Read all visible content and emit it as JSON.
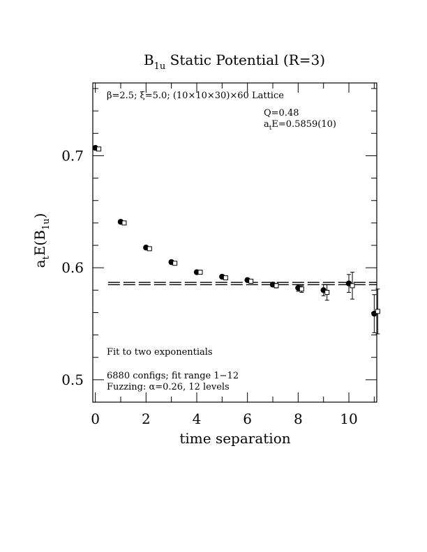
{
  "chart_data": {
    "type": "scatter",
    "title": "B₁ᵤ Static Potential (R=3)",
    "title_main": "B",
    "title_sub": "1u",
    "title_rest": " Static Potential (R=3)",
    "xlabel": "time separation",
    "ylabel_main": "a",
    "ylabel_sub1": "t",
    "ylabel_mid": "E(B",
    "ylabel_sub2": "1u",
    "ylabel_end": ")",
    "xlim": [
      -0.1,
      11.1
    ],
    "ylim": [
      0.48,
      0.765
    ],
    "x_ticks": [
      0,
      2,
      4,
      6,
      8,
      10
    ],
    "x_tick_labels": [
      "0",
      "2",
      "4",
      "6",
      "8",
      "10"
    ],
    "y_ticks": [
      0.5,
      0.6,
      0.7
    ],
    "y_tick_labels": [
      "0.5",
      "0.6",
      "0.7"
    ],
    "annotations": {
      "lattice": "β=2.5; ξ=5.0; (10×10×30)×60 Lattice",
      "q": "Q=0.48",
      "energy_main": "a",
      "energy_sub": "t",
      "energy_rest": "E=0.5859(10)",
      "fit_label": "Fit to two exponentials",
      "configs": "6880 configs; fit range 1−12",
      "fuzzing": "Fuzzing: α=0.26, 12 levels"
    },
    "fit": {
      "value": 0.5859,
      "error": 0.001,
      "x_range": [
        0.5,
        11.1
      ]
    },
    "series": [
      {
        "marker": "filled-circle",
        "x": [
          0,
          1,
          2,
          3,
          4,
          5,
          6,
          7,
          8,
          9,
          10,
          11
        ],
        "y": [
          0.707,
          0.641,
          0.618,
          0.605,
          0.596,
          0.592,
          0.589,
          0.585,
          0.582,
          0.58,
          0.586,
          0.559
        ],
        "err": [
          0.001,
          0.001,
          0.001,
          0.001,
          0.001,
          0.001,
          0.001,
          0.002,
          0.003,
          0.005,
          0.008,
          0.017
        ]
      },
      {
        "marker": "open-square",
        "x": [
          0,
          1,
          2,
          3,
          4,
          5,
          6,
          7,
          8,
          9,
          10,
          11
        ],
        "y": [
          0.706,
          0.64,
          0.617,
          0.604,
          0.596,
          0.591,
          0.588,
          0.584,
          0.581,
          0.578,
          0.584,
          0.561
        ],
        "err": [
          0.001,
          0.001,
          0.001,
          0.001,
          0.001,
          0.001,
          0.001,
          0.002,
          0.003,
          0.007,
          0.012,
          0.02
        ]
      }
    ]
  }
}
